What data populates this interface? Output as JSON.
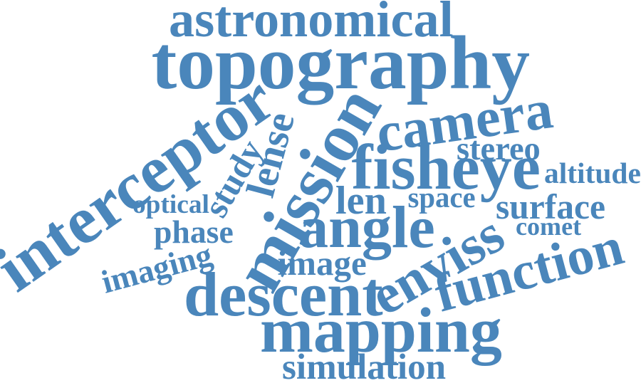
{
  "cloud": {
    "color": "#4a86bb",
    "words": {
      "astronomical": "astronomical",
      "topography": "topography",
      "interceptor": "interceptor",
      "mission": "mission",
      "camera": "camera",
      "fisheye": "fisheye",
      "stereo": "stereo",
      "altitude": "altitude",
      "lense": "lense",
      "study": "study",
      "optical": "optical",
      "len": "len",
      "space": "space",
      "surface": "surface",
      "angle": "angle",
      "phase": "phase",
      "comet": "comet",
      "enviss": "enviss",
      "imaging": "imaging",
      "image": "image",
      "function": "function",
      "descent": "descent",
      "mapping": "mapping",
      "simulation": "simulation"
    }
  }
}
